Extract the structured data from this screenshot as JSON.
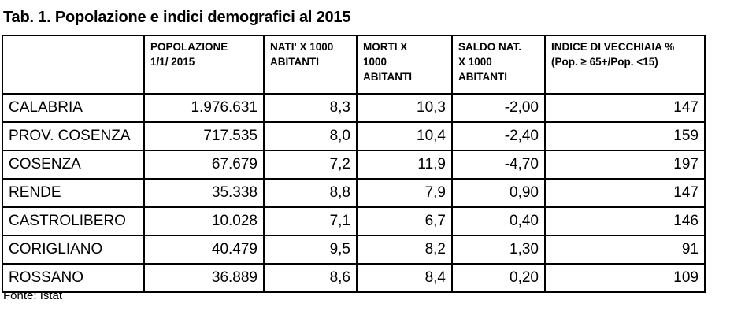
{
  "title": "Tab. 1. Popolazione e indici demografici al 2015",
  "headers": [
    "",
    "POPOLAZIONE\n1/1/ 2015",
    "NATI' X 1000\nABITANTI",
    "MORTI X\n1000\nABITANTI",
    "SALDO NAT.\nX 1000\nABITANTI",
    "INDICE DI VECCHIAIA %\n(Pop. ≥  65+/Pop. <15)"
  ],
  "rows": [
    [
      "CALABRIA",
      "1.976.631",
      "8,3",
      "10,3",
      "-2,00",
      "147"
    ],
    [
      "PROV. COSENZA",
      "717.535",
      "8,0",
      "10,4",
      "-2,40",
      "159"
    ],
    [
      "COSENZA",
      "67.679",
      "7,2",
      "11,9",
      "-4,70",
      "197"
    ],
    [
      "RENDE",
      "35.338",
      "8,8",
      "7,9",
      "0,90",
      "147"
    ],
    [
      "CASTROLIBERO",
      "10.028",
      "7,1",
      "6,7",
      "0,40",
      "146"
    ],
    [
      "CORIGLIANO",
      "40.479",
      "9,5",
      "8,2",
      "1,30",
      "91"
    ],
    [
      "ROSSANO",
      "36.889",
      "8,6",
      "8,4",
      "0,20",
      "109"
    ]
  ],
  "source": "Fonte: Istat"
}
